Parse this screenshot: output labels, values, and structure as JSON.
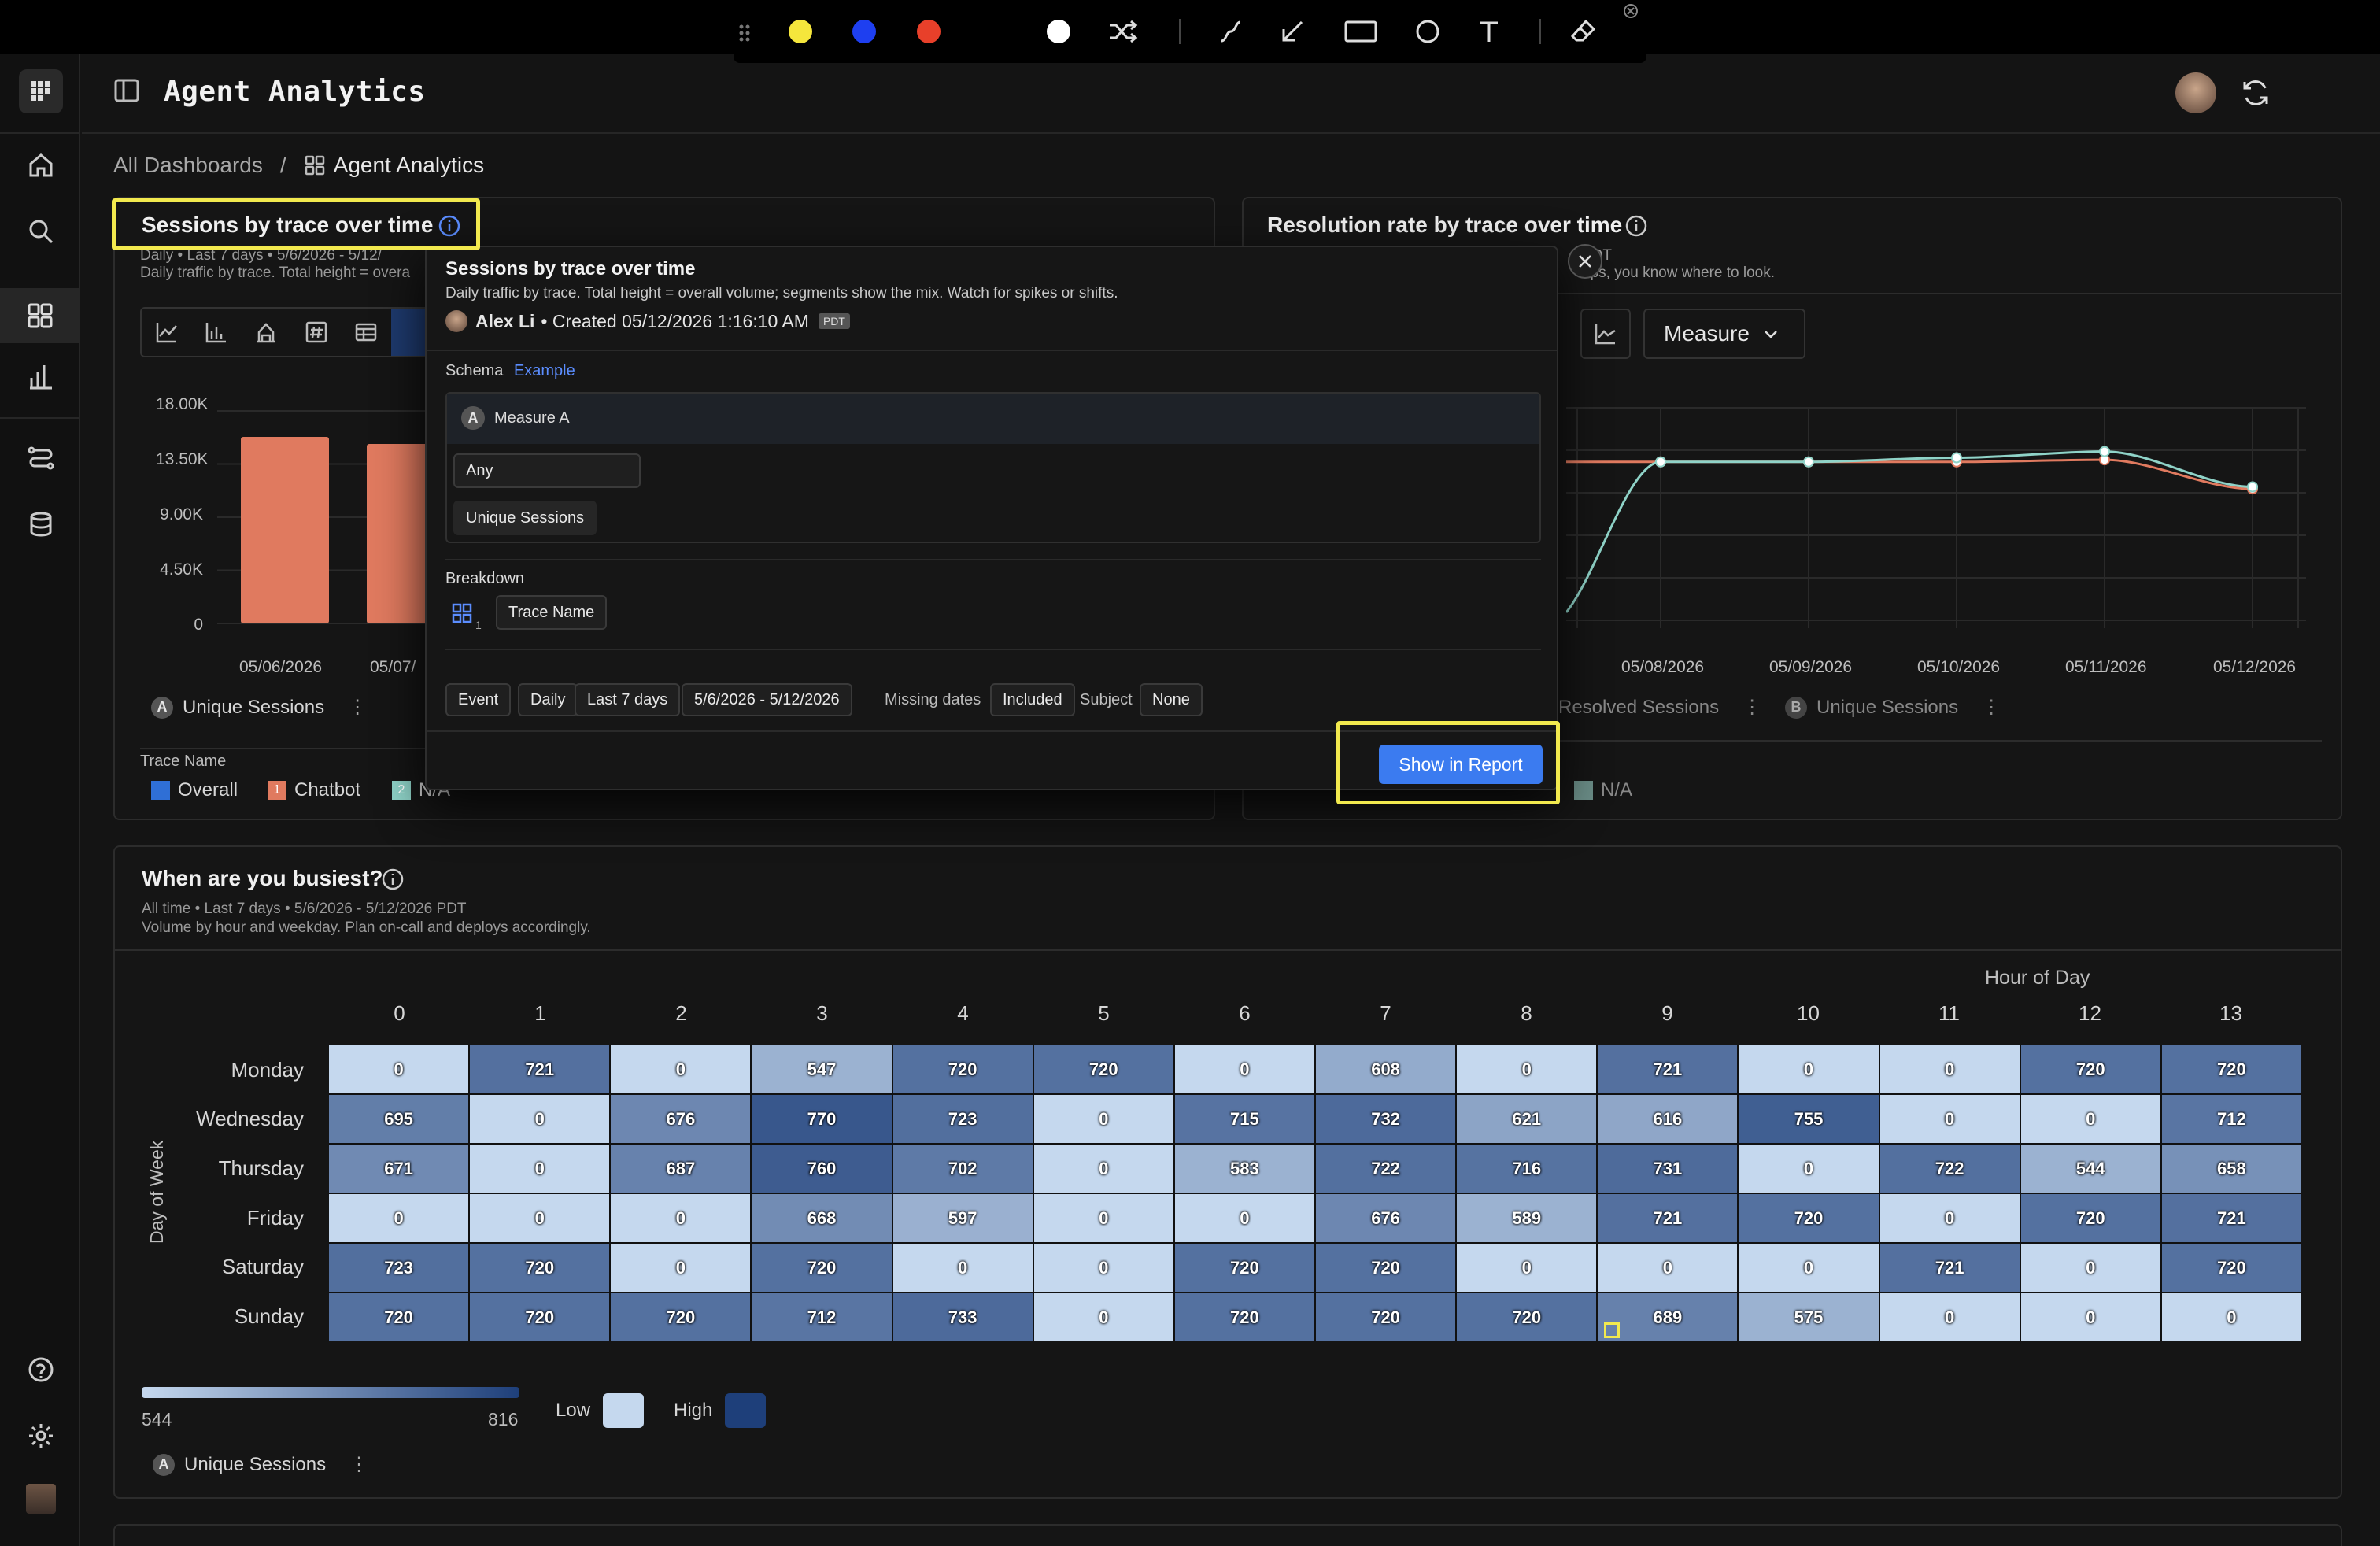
{
  "header": {
    "app_title": "Agent Analytics"
  },
  "breadcrumb": {
    "root": "All Dashboards",
    "separator": "/",
    "current": "Agent Analytics"
  },
  "annotation_toolbar": {
    "colors": [
      "#f5e63c",
      "#1e3ff0",
      "#e8402a",
      "#ffffff"
    ],
    "tools": [
      "shuffle-icon",
      "pen-icon",
      "arrow-icon",
      "rectangle-icon",
      "circle-icon",
      "text-icon",
      "eraser-icon"
    ]
  },
  "sessions_card": {
    "title": "Sessions by trace over time",
    "subtitle_line1": "Daily • Last 7 days • 5/6/2026 - 5/12/",
    "subtitle_line2": "Daily traffic by trace. Total height = overa",
    "legend_measure": "Unique Sessions",
    "legend_badge": "A",
    "breakdown_label": "Trace Name",
    "legend": [
      {
        "label": "Overall",
        "color": "#2f6fd6",
        "num": ""
      },
      {
        "label": "Chatbot",
        "color": "#e07a5f",
        "num": "1"
      },
      {
        "label": "N/A",
        "color": "#8fd3c8",
        "num": "2"
      }
    ]
  },
  "resolution_card": {
    "title": "Resolution rate by trace over time",
    "subtitle_line1": "PDT",
    "subtitle_line2": "ops, you know where to look.",
    "measure_dropdown": "Measure",
    "legend_a": "Resolved Sessions",
    "legend_b_badge": "B",
    "legend_b": "Unique Sessions",
    "bottom_legend_last": "N/A"
  },
  "chart_data": [
    {
      "type": "bar",
      "title": "Sessions by trace over time",
      "categories": [
        "05/06/2026",
        "05/07/"
      ],
      "series": [
        {
          "name": "Chatbot",
          "values": [
            15800,
            15200
          ]
        }
      ],
      "ylim": [
        0,
        18000
      ],
      "yticks": [
        "0",
        "4.50K",
        "9.00K",
        "13.50K",
        "18.00K"
      ]
    },
    {
      "type": "line",
      "title": "Resolution rate by trace over time",
      "categories": [
        "05/08/2026",
        "05/09/2026",
        "05/10/2026",
        "05/11/2026",
        "05/12/2026"
      ],
      "series": [
        {
          "name": "Resolved Sessions",
          "color": "#e07a5f",
          "values": [
            0.8,
            0.8,
            0.8,
            0.81,
            0.67
          ]
        },
        {
          "name": "Unique Sessions",
          "color": "#8fd3c8",
          "values": [
            0.8,
            0.8,
            0.82,
            0.85,
            0.68
          ]
        }
      ]
    },
    {
      "type": "heatmap",
      "title": "When are you busiest?",
      "xlabel": "Hour of Day",
      "ylabel": "Day of Week",
      "x": [
        "0",
        "1",
        "2",
        "3",
        "4",
        "5",
        "6",
        "7",
        "8",
        "9",
        "10",
        "11",
        "12",
        "13"
      ],
      "y": [
        "Monday",
        "Wednesday",
        "Thursday",
        "Friday",
        "Saturday",
        "Sunday"
      ],
      "values": [
        [
          0,
          721,
          0,
          547,
          720,
          720,
          0,
          608,
          0,
          721,
          0,
          0,
          720,
          720
        ],
        [
          695,
          0,
          676,
          770,
          723,
          0,
          715,
          732,
          621,
          616,
          755,
          0,
          0,
          712
        ],
        [
          671,
          0,
          687,
          760,
          702,
          0,
          583,
          722,
          716,
          731,
          0,
          722,
          544,
          658
        ],
        [
          0,
          0,
          0,
          668,
          597,
          0,
          0,
          676,
          589,
          721,
          720,
          0,
          720,
          721
        ],
        [
          723,
          720,
          0,
          720,
          0,
          0,
          720,
          720,
          0,
          0,
          0,
          721,
          0,
          720
        ],
        [
          720,
          720,
          720,
          712,
          733,
          0,
          720,
          720,
          720,
          689,
          575,
          0,
          0,
          0
        ]
      ],
      "scale_min": "544",
      "scale_max": "816"
    }
  ],
  "busiest_card": {
    "title": "When are you busiest?",
    "subtitle_line1": "All time • Last 7 days • 5/6/2026 - 5/12/2026 PDT",
    "subtitle_line2": "Volume by hour and weekday. Plan on-call and deploys accordingly.",
    "x_title": "Hour of Day",
    "y_title": "Day of Week",
    "scale_min": "544",
    "scale_max": "816",
    "low_label": "Low",
    "high_label": "High",
    "low_color": "#c5d8ee",
    "high_color": "#1e3f7a",
    "legend_badge": "A",
    "legend_measure": "Unique Sessions"
  },
  "popover": {
    "title": "Sessions by trace over time",
    "description": "Daily traffic by trace. Total height = overall volume; segments show the mix. Watch for spikes or shifts.",
    "author": "Alex Li",
    "created": "• Created 05/12/2026 1:16:10 AM",
    "tz_badge": "PDT",
    "schema_label": "Schema",
    "schema_link": "Example",
    "measure_badge": "A",
    "measure_name": "Measure A",
    "any_chip": "Any",
    "unique_sessions_chip": "Unique Sessions",
    "breakdown_label": "Breakdown",
    "breakdown_index": "1",
    "breakdown_chip": "Trace Name",
    "filters": {
      "event": "Event",
      "daily": "Daily",
      "range": "Last 7 days",
      "dates": "5/6/2026 - 5/12/2026",
      "missing_label": "Missing dates",
      "missing_value": "Included",
      "subject_label": "Subject",
      "subject_value": "None"
    },
    "show_button": "Show in Report"
  }
}
